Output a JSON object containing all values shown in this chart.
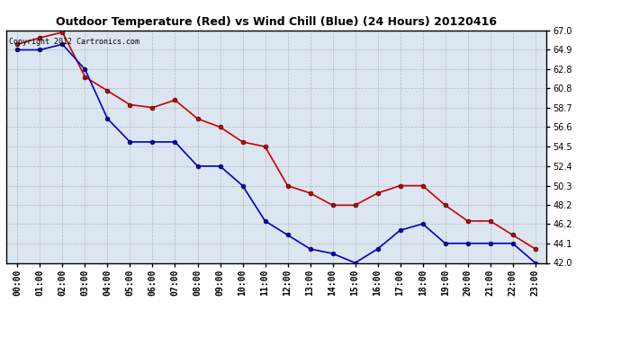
{
  "title": "Outdoor Temperature (Red) vs Wind Chill (Blue) (24 Hours) 20120416",
  "copyright_text": "Copyright 2012 Cartronics.com",
  "x_labels": [
    "00:00",
    "01:00",
    "02:00",
    "03:00",
    "04:00",
    "05:00",
    "06:00",
    "07:00",
    "08:00",
    "09:00",
    "10:00",
    "11:00",
    "12:00",
    "13:00",
    "14:00",
    "15:00",
    "16:00",
    "17:00",
    "18:00",
    "19:00",
    "20:00",
    "21:00",
    "22:00",
    "23:00"
  ],
  "red_temps": [
    65.5,
    66.2,
    66.8,
    62.0,
    60.5,
    59.0,
    58.7,
    59.5,
    57.5,
    56.6,
    55.0,
    54.5,
    50.3,
    49.5,
    48.2,
    48.2,
    49.5,
    50.3,
    50.3,
    48.2,
    46.5,
    46.5,
    45.0,
    43.5
  ],
  "blue_windchill": [
    64.9,
    64.9,
    65.5,
    62.8,
    57.5,
    55.0,
    55.0,
    55.0,
    52.4,
    52.4,
    50.3,
    46.5,
    45.0,
    43.5,
    43.0,
    42.0,
    43.5,
    45.5,
    46.2,
    44.1,
    44.1,
    44.1,
    44.1,
    42.0
  ],
  "ylim_min": 42.0,
  "ylim_max": 67.0,
  "yticks": [
    42.0,
    44.1,
    46.2,
    48.2,
    50.3,
    52.4,
    54.5,
    56.6,
    58.7,
    60.8,
    62.8,
    64.9,
    67.0
  ],
  "red_color": "#cc0000",
  "blue_color": "#0000cc",
  "bg_color": "#ffffff",
  "plot_bg_color": "#dce6f0",
  "grid_color": "#aaaaaa",
  "marker_size": 3.5,
  "linewidth": 1.2,
  "title_fontsize": 9,
  "tick_fontsize": 7
}
